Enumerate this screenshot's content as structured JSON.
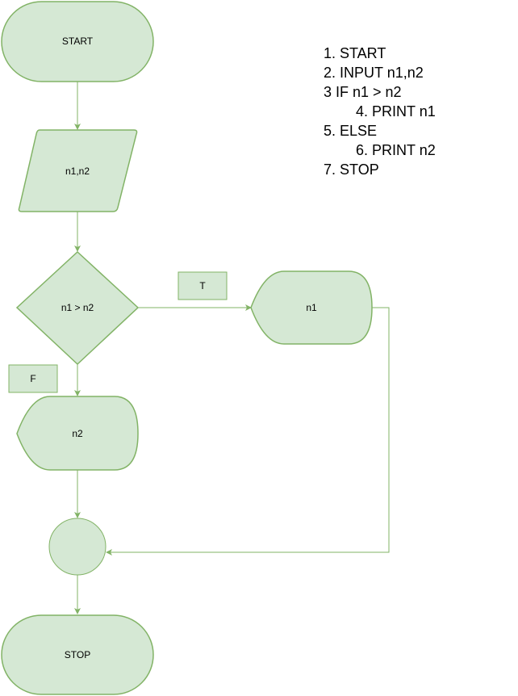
{
  "colors": {
    "fill": "#d5e8d4",
    "stroke": "#82b366"
  },
  "nodes": {
    "start": "START",
    "input": "n1,n2",
    "decision": "n1 > n2",
    "true_label": "T",
    "false_label": "F",
    "output_true": "n1",
    "output_false": "n2",
    "stop": "STOP"
  },
  "algorithm": [
    "1. START",
    "2. INPUT n1,n2",
    "3 IF n1 > n2",
    "4. PRINT n1",
    "5. ELSE",
    "6. PRINT n2",
    "7. STOP"
  ]
}
